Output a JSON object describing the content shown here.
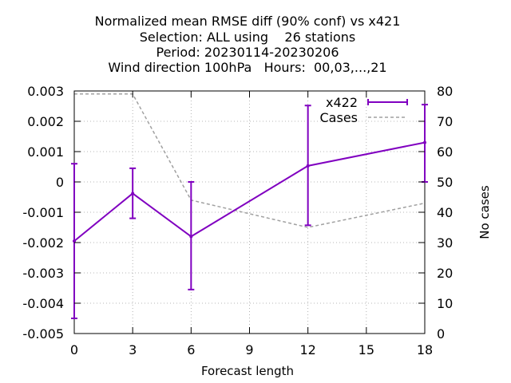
{
  "chart_data": {
    "type": "line",
    "title_lines": [
      "Normalized mean RMSE diff (90% conf) vs x421",
      "Selection: ALL using    26 stations",
      "Period: 20230114-20230206",
      "Wind direction 100hPa   Hours:  00,03,...,21"
    ],
    "xlabel": "Forecast length",
    "ylabel": "",
    "y2label": "No cases",
    "x": [
      0,
      3,
      6,
      12,
      18
    ],
    "xticks": [
      "0",
      "3",
      "6",
      "9",
      "12",
      "15",
      "18"
    ],
    "xlim": [
      0,
      18
    ],
    "ylim": [
      -0.005,
      0.003
    ],
    "yticks": [
      "-0.005",
      "-0.004",
      "-0.003",
      "-0.002",
      "-0.001",
      "0",
      "0.001",
      "0.002",
      "0.003"
    ],
    "y2lim": [
      0,
      80
    ],
    "y2ticks": [
      "0",
      "10",
      "20",
      "30",
      "40",
      "50",
      "60",
      "70",
      "80"
    ],
    "grid": true,
    "legend_position": "top-right",
    "series": [
      {
        "name": "x422",
        "axis": "left",
        "color": "#8000c0",
        "values": [
          -0.00195,
          -0.00038,
          -0.0018,
          0.00053,
          0.0013
        ],
        "err_low": [
          -0.0045,
          -0.0012,
          -0.00355,
          -0.00143,
          0.0
        ],
        "err_high": [
          0.0006,
          0.00045,
          0.0,
          0.00252,
          0.00255
        ]
      },
      {
        "name": "Cases",
        "axis": "right",
        "color": "#a0a0a0",
        "style": "dashed",
        "values": [
          79,
          79,
          44,
          35,
          43
        ]
      }
    ]
  }
}
